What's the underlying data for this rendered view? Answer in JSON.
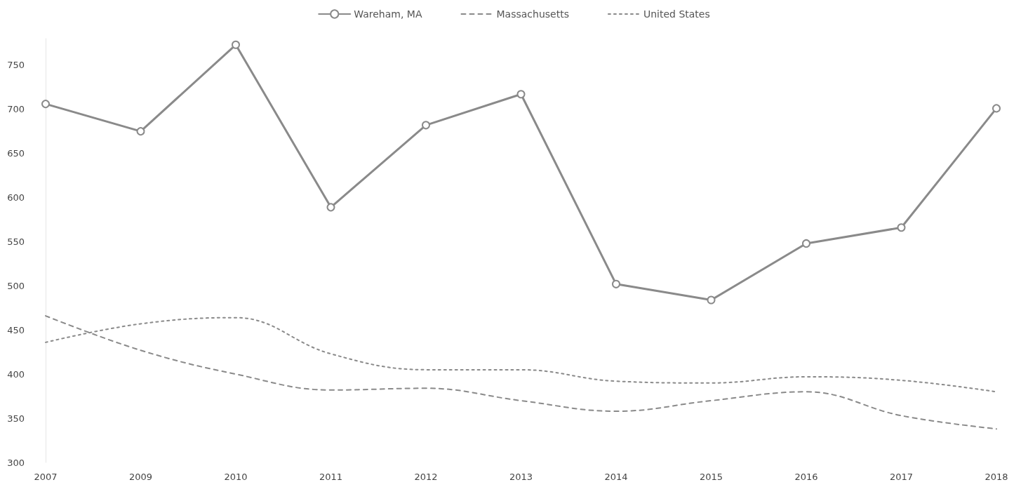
{
  "chart_data": {
    "type": "line",
    "categories": [
      "2007",
      "2009",
      "2010",
      "2011",
      "2012",
      "2013",
      "2014",
      "2015",
      "2016",
      "2017",
      "2018"
    ],
    "series": [
      {
        "name": "Wareham, MA",
        "color": "#8a8a8a",
        "marker": "circle",
        "line_style": "solid",
        "values": [
          706,
          675,
          773,
          589,
          682,
          717,
          502,
          484,
          548,
          566,
          701
        ]
      },
      {
        "name": "Massachusetts",
        "color": "#8a8a8a",
        "marker": "none",
        "line_style": "dashed",
        "values": [
          466,
          427,
          400,
          382,
          384,
          370,
          358,
          370,
          380,
          353,
          338
        ]
      },
      {
        "name": "United States",
        "color": "#8a8a8a",
        "marker": "none",
        "line_style": "dotted",
        "values": [
          436,
          457,
          464,
          423,
          405,
          405,
          392,
          390,
          397,
          393,
          380
        ]
      }
    ],
    "ylim": [
      300,
      780
    ],
    "yticks": [
      300,
      350,
      400,
      450,
      500,
      550,
      600,
      650,
      700,
      750
    ],
    "grid": false,
    "legend": "top"
  }
}
